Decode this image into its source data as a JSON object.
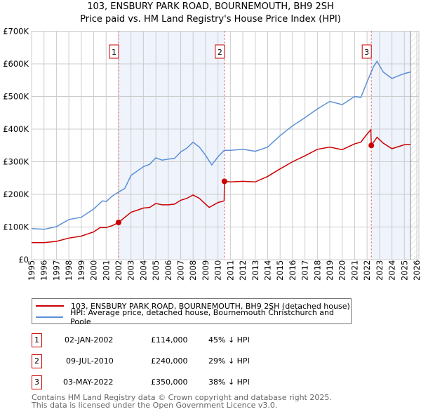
{
  "title_line1": "103, ENSBURY PARK ROAD, BOURNEMOUTH, BH9 2SH",
  "title_line2": "Price paid vs. HM Land Registry's House Price Index (HPI)",
  "colors": {
    "property": "#cc0000",
    "hpi": "#5b8fd6",
    "shade": "#eef3fc",
    "grid": "#cccccc"
  },
  "chart_data": {
    "type": "line",
    "xlim": [
      1995,
      2026
    ],
    "ylim": [
      0,
      700000
    ],
    "x_ticks": [
      "1995",
      "1996",
      "1997",
      "1998",
      "1999",
      "2000",
      "2001",
      "2002",
      "2003",
      "2004",
      "2005",
      "2006",
      "2007",
      "2008",
      "2009",
      "2010",
      "2011",
      "2012",
      "2013",
      "2014",
      "2015",
      "2016",
      "2017",
      "2018",
      "2019",
      "2020",
      "2021",
      "2022",
      "2023",
      "2024",
      "2025",
      "2026"
    ],
    "y_ticks": [
      {
        "v": 0,
        "label": "£0"
      },
      {
        "v": 100000,
        "label": "£100K"
      },
      {
        "v": 200000,
        "label": "£200K"
      },
      {
        "v": 300000,
        "label": "£300K"
      },
      {
        "v": 400000,
        "label": "£400K"
      },
      {
        "v": 500000,
        "label": "£500K"
      },
      {
        "v": 600000,
        "label": "£600K"
      },
      {
        "v": 700000,
        "label": "£700K"
      }
    ],
    "grid": true,
    "shaded_ranges": [
      [
        2002.0,
        2010.52
      ],
      [
        2022.34,
        2025.5
      ]
    ],
    "forecast_hatch_from": 2025.5,
    "series": [
      {
        "name": "103, ENSBURY PARK ROAD, BOURNEMOUTH, BH9 2SH (detached house)",
        "color": "#cc0000",
        "x": [
          1995,
          1996,
          1997,
          1998,
          1999,
          2000,
          2000.5,
          2001,
          2001.5,
          2002,
          2003,
          2004,
          2004.5,
          2005,
          2005.5,
          2006,
          2006.5,
          2007,
          2007.5,
          2008,
          2008.5,
          2009,
          2009.3,
          2010,
          2010.5,
          2010.52,
          2011,
          2012,
          2013,
          2014,
          2015,
          2016,
          2017,
          2018,
          2019,
          2020,
          2021,
          2021.5,
          2022,
          2022.3,
          2022.34,
          2022.8,
          2023.3,
          2024,
          2025,
          2025.5
        ],
        "y": [
          52000,
          52000,
          56000,
          66000,
          72000,
          85000,
          98000,
          98000,
          104000,
          114000,
          145000,
          158000,
          160000,
          172000,
          168000,
          168000,
          170000,
          182000,
          188000,
          198000,
          188000,
          170000,
          160000,
          175000,
          180000,
          240000,
          238000,
          240000,
          238000,
          255000,
          278000,
          300000,
          318000,
          338000,
          345000,
          337000,
          355000,
          360000,
          385000,
          398000,
          350000,
          375000,
          357000,
          340000,
          352000,
          353000
        ]
      },
      {
        "name": "HPI: Average price, detached house, Bournemouth Christchurch and Poole",
        "color": "#5b8fd6",
        "x": [
          1995,
          1996,
          1997,
          1998,
          1999,
          2000,
          2000.7,
          2001,
          2001.5,
          2002,
          2002.5,
          2003,
          2004,
          2004.5,
          2005,
          2005.5,
          2006,
          2006.5,
          2007,
          2007.5,
          2008,
          2008.5,
          2009,
          2009.5,
          2010,
          2010.5,
          2011,
          2012,
          2013,
          2014,
          2015,
          2016,
          2017,
          2018,
          2019,
          2020,
          2021,
          2021.5,
          2022,
          2022.5,
          2022.8,
          2023.3,
          2024,
          2024.5,
          2025,
          2025.5
        ],
        "y": [
          95000,
          93000,
          101000,
          123000,
          130000,
          155000,
          180000,
          178000,
          195000,
          207000,
          218000,
          258000,
          285000,
          292000,
          312000,
          305000,
          308000,
          310000,
          330000,
          342000,
          360000,
          345000,
          320000,
          290000,
          315000,
          335000,
          335000,
          338000,
          332000,
          345000,
          380000,
          410000,
          435000,
          462000,
          485000,
          475000,
          500000,
          497000,
          545000,
          590000,
          608000,
          575000,
          555000,
          563000,
          570000,
          575000
        ]
      }
    ],
    "sales": [
      {
        "n": "1",
        "x": 2002.0,
        "y": 114000
      },
      {
        "n": "2",
        "x": 2010.52,
        "y": 240000
      },
      {
        "n": "3",
        "x": 2022.34,
        "y": 350000
      }
    ]
  },
  "legend": [
    {
      "label": "103, ENSBURY PARK ROAD, BOURNEMOUTH, BH9 2SH (detached house)",
      "color": "#cc0000"
    },
    {
      "label": "HPI: Average price, detached house, Bournemouth Christchurch and Poole",
      "color": "#5b8fd6"
    }
  ],
  "transactions": [
    {
      "n": "1",
      "date": "02-JAN-2002",
      "price": "£114,000",
      "hpi": "45% ↓ HPI"
    },
    {
      "n": "2",
      "date": "09-JUL-2010",
      "price": "£240,000",
      "hpi": "29% ↓ HPI"
    },
    {
      "n": "3",
      "date": "03-MAY-2022",
      "price": "£350,000",
      "hpi": "38% ↓ HPI"
    }
  ],
  "footer_line1": "Contains HM Land Registry data © Crown copyright and database right 2025.",
  "footer_line2": "This data is licensed under the Open Government Licence v3.0."
}
